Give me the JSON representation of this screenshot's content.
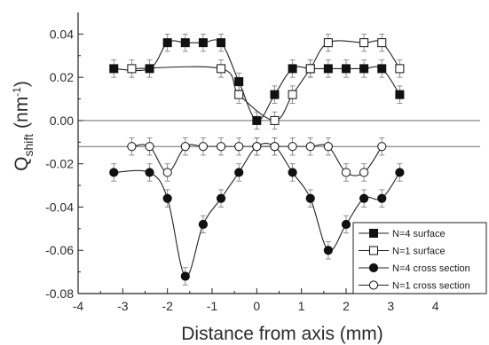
{
  "chart_data": {
    "type": "scatter",
    "title": "",
    "xlabel": "Distance from axis (mm)",
    "ylabel": {
      "main": "Q",
      "sub": "shift",
      "unit_open": " (nm",
      "unit_sup": "-1",
      "unit_close": ")"
    },
    "xlim": [
      -4,
      5
    ],
    "ylim": [
      -0.08,
      0.05
    ],
    "xticks": [
      -4,
      -3,
      -2,
      -1,
      0,
      1,
      2,
      3,
      4
    ],
    "xtick_labels": [
      "-4",
      "-3",
      "-2",
      "-1",
      "0",
      "1",
      "2",
      "3",
      "4"
    ],
    "yticks": [
      -0.08,
      -0.06,
      -0.04,
      -0.02,
      0.0,
      0.02,
      0.04
    ],
    "ytick_labels": [
      "-0.08",
      "-0.06",
      "-0.04",
      "-0.02",
      "0.00",
      "0.02",
      "0.04"
    ],
    "reference_lines": [
      0.0,
      -0.012
    ],
    "grid": false,
    "legend_position": "bottom-right",
    "error_bar": 0.004,
    "series": [
      {
        "name": "N=4 surface",
        "marker": "square",
        "filled": true,
        "x": [
          -3.2,
          -2.4,
          -2.0,
          -1.6,
          -1.2,
          -0.8,
          -0.4,
          0.0,
          0.4,
          0.8,
          1.2,
          1.6,
          2.0,
          2.4,
          2.8,
          3.2
        ],
        "y": [
          0.024,
          0.024,
          0.036,
          0.036,
          0.036,
          0.036,
          0.018,
          0.0,
          0.012,
          0.024,
          0.024,
          0.024,
          0.024,
          0.024,
          0.024,
          0.012
        ]
      },
      {
        "name": "N=1 surface",
        "marker": "square",
        "filled": false,
        "x": [
          -2.8,
          -0.8,
          -0.4,
          0.4,
          0.8,
          1.2,
          1.6,
          2.4,
          2.8,
          3.2
        ],
        "y": [
          0.024,
          0.024,
          0.012,
          0.0,
          0.012,
          0.024,
          0.036,
          0.036,
          0.036,
          0.024
        ]
      },
      {
        "name": "N=4 cross section",
        "marker": "circle",
        "filled": true,
        "x": [
          -3.2,
          -2.4,
          -2.0,
          -1.6,
          -1.2,
          -0.8,
          -0.4,
          0.0,
          0.4,
          0.8,
          1.2,
          1.6,
          2.0,
          2.4,
          2.8,
          3.2
        ],
        "y": [
          -0.024,
          -0.024,
          -0.036,
          -0.072,
          -0.048,
          -0.036,
          -0.024,
          -0.012,
          -0.012,
          -0.024,
          -0.036,
          -0.06,
          -0.048,
          -0.036,
          -0.036,
          -0.024
        ]
      },
      {
        "name": "N=1 cross section",
        "marker": "circle",
        "filled": false,
        "x": [
          -2.8,
          -2.4,
          -2.0,
          -1.6,
          -1.2,
          -0.8,
          -0.4,
          0.0,
          0.4,
          0.8,
          1.2,
          1.6,
          2.0,
          2.4,
          2.8
        ],
        "y": [
          -0.012,
          -0.012,
          -0.024,
          -0.012,
          -0.012,
          -0.012,
          -0.012,
          -0.012,
          -0.012,
          -0.012,
          -0.012,
          -0.012,
          -0.024,
          -0.024,
          -0.012
        ]
      }
    ]
  }
}
